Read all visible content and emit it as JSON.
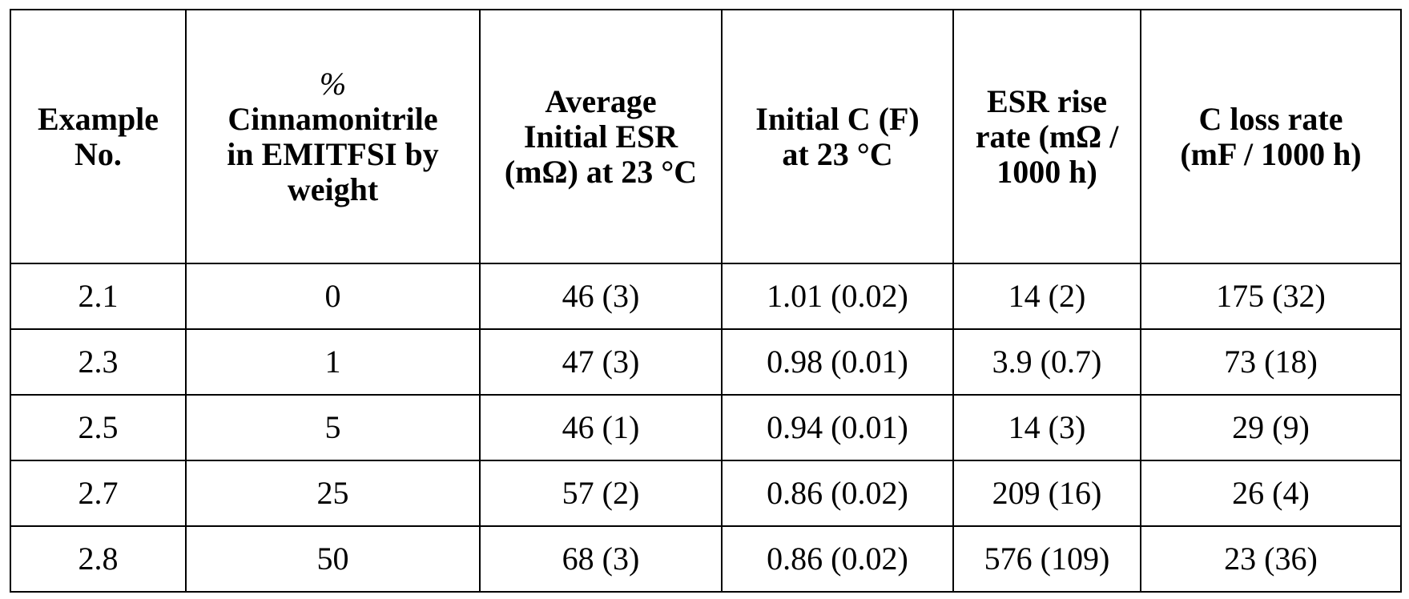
{
  "table": {
    "headers": [
      [
        "Example",
        "No."
      ],
      [
        "%",
        "Cinnamonitrile",
        "in EMITFSI by",
        "weight"
      ],
      [
        "Average",
        "Initial ESR",
        "(mΩ) at 23 °C"
      ],
      [
        "Initial C (F)",
        "at 23 °C"
      ],
      [
        "ESR rise",
        "rate (mΩ /",
        "1000 h)"
      ],
      [
        "C loss rate",
        "(mF / 1000 h)"
      ]
    ],
    "rows": [
      [
        "2.1",
        "0",
        "46 (3)",
        "1.01 (0.02)",
        "14 (2)",
        "175 (32)"
      ],
      [
        "2.3",
        "1",
        "47 (3)",
        "0.98 (0.01)",
        "3.9 (0.7)",
        "73 (18)"
      ],
      [
        "2.5",
        "5",
        "46 (1)",
        "0.94 (0.01)",
        "14 (3)",
        "29 (9)"
      ],
      [
        "2.7",
        "25",
        "57 (2)",
        "0.86 (0.02)",
        "209 (16)",
        "26 (4)"
      ],
      [
        "2.8",
        "50",
        "68 (3)",
        "0.86 (0.02)",
        "576 (109)",
        "23 (36)"
      ]
    ]
  }
}
